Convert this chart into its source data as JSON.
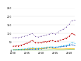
{
  "years": [
    2000,
    2001,
    2002,
    2003,
    2004,
    2005,
    2006,
    2007,
    2008,
    2009,
    2010,
    2011,
    2012,
    2013,
    2014,
    2015,
    2016,
    2017,
    2018,
    2019,
    2020,
    2021,
    2022
  ],
  "series": {
    "North America": [
      73,
      75,
      74,
      78,
      82,
      86,
      93,
      99,
      82,
      78,
      82,
      86,
      90,
      96,
      101,
      96,
      104,
      116,
      124,
      135,
      152,
      172,
      178
    ],
    "Europe": [
      24,
      25,
      26,
      30,
      36,
      42,
      50,
      58,
      46,
      44,
      46,
      50,
      51,
      54,
      58,
      52,
      54,
      60,
      64,
      72,
      82,
      98,
      92
    ],
    "China": [
      2,
      2,
      2,
      3,
      4,
      5,
      6,
      8,
      7,
      8,
      9,
      11,
      13,
      15,
      17,
      17,
      19,
      21,
      23,
      25,
      28,
      33,
      28
    ],
    "Latin America": [
      4,
      4,
      4,
      5,
      6,
      7,
      9,
      11,
      9,
      9,
      10,
      12,
      13,
      13,
      12,
      9,
      8,
      8,
      8,
      9,
      9,
      11,
      9
    ],
    "India": [
      1,
      1,
      1,
      1,
      1,
      1,
      2,
      2,
      2,
      2,
      2,
      2,
      2,
      3,
      3,
      3,
      3,
      3,
      3,
      4,
      5,
      6,
      5
    ],
    "Africa": [
      1,
      1,
      1,
      1,
      1,
      1,
      1,
      1,
      1,
      1,
      1,
      1,
      1,
      1,
      1,
      1,
      1,
      1,
      1,
      1,
      1,
      1,
      1
    ],
    "Asia-Pacific": [
      5,
      5,
      6,
      7,
      9,
      11,
      14,
      16,
      13,
      13,
      15,
      18,
      19,
      20,
      21,
      19,
      21,
      24,
      27,
      30,
      36,
      46,
      42
    ]
  },
  "colors": {
    "North America": "#7b5ea7",
    "Europe": "#c00000",
    "China": "#4472c4",
    "Latin America": "#ffc000",
    "India": "#70ad47",
    "Africa": "#ff0000",
    "Asia-Pacific": "#00b0f0"
  },
  "markers": {
    "North America": "o",
    "Europe": "s",
    "China": "o",
    "Latin America": "none",
    "India": "none",
    "Africa": "none",
    "Asia-Pacific": "o"
  },
  "linestyles": {
    "North America": ":",
    "Europe": "--",
    "China": "-",
    "Latin America": "-",
    "India": "-",
    "Africa": "-",
    "Asia-Pacific": ":"
  },
  "ylim": [
    0,
    250
  ],
  "yticks": [
    0,
    50,
    100,
    150,
    200,
    250
  ],
  "xlim": [
    2000,
    2022
  ],
  "background_color": "#ffffff",
  "grid_color": "#e0e0e0"
}
